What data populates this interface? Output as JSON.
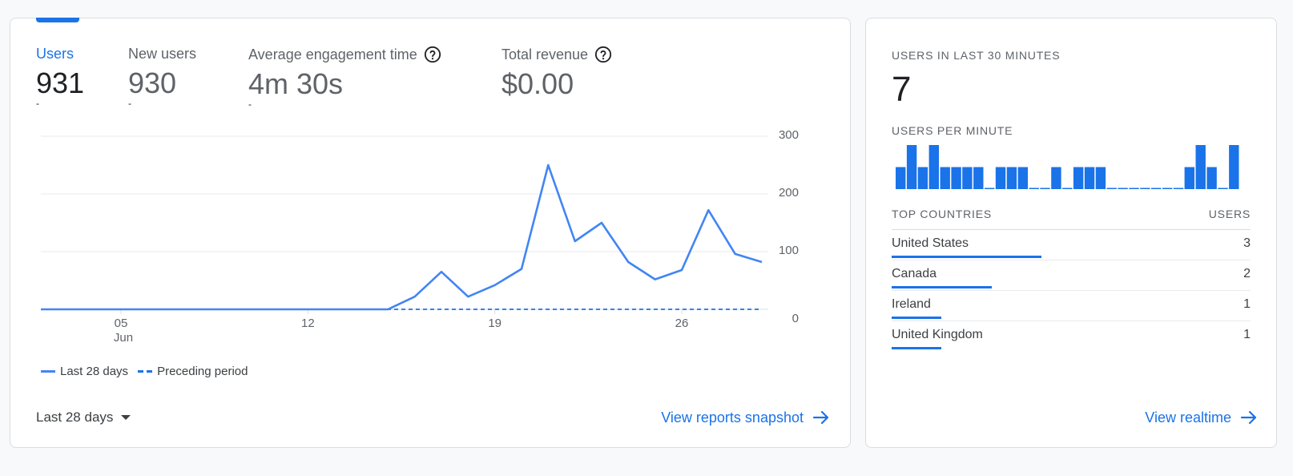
{
  "main_card": {
    "metrics": [
      {
        "label": "Users",
        "value": "931",
        "change": "-",
        "active": true,
        "help": false
      },
      {
        "label": "New users",
        "value": "930",
        "change": "-",
        "active": false,
        "help": false
      },
      {
        "label": "Average engagement time",
        "value": "4m 30s",
        "change": "-",
        "active": false,
        "help": true
      },
      {
        "label": "Total revenue",
        "value": "$0.00",
        "change": "",
        "active": false,
        "help": true
      }
    ],
    "date_range_label": "Last 28 days",
    "snapshot_link": "View reports snapshot"
  },
  "chart_data": {
    "type": "line",
    "y_ticks": [
      "300",
      "200",
      "100",
      "0"
    ],
    "ylim": [
      0,
      300
    ],
    "x_ticks": [
      {
        "label": "05",
        "sublabel": "Jun",
        "day": 5
      },
      {
        "label": "12",
        "sublabel": "",
        "day": 12
      },
      {
        "label": "19",
        "sublabel": "",
        "day": 19
      },
      {
        "label": "26",
        "sublabel": "",
        "day": 26
      }
    ],
    "x_days": [
      2,
      3,
      4,
      5,
      6,
      7,
      8,
      9,
      10,
      11,
      12,
      13,
      14,
      15,
      16,
      17,
      18,
      19,
      20,
      21,
      22,
      23,
      24,
      25,
      26,
      27,
      28,
      29
    ],
    "series": [
      {
        "name": "Last 28 days",
        "style": "solid",
        "color": "#4285f4",
        "values": [
          0,
          0,
          0,
          0,
          0,
          0,
          0,
          0,
          0,
          0,
          0,
          0,
          0,
          0,
          22,
          65,
          22,
          42,
          70,
          250,
          118,
          150,
          82,
          52,
          68,
          172,
          96,
          82
        ]
      },
      {
        "name": "Preceding period",
        "style": "dashed",
        "color": "#1a73e8",
        "values": [
          0,
          0,
          0,
          0,
          0,
          0,
          0,
          0,
          0,
          0,
          0,
          0,
          0,
          0,
          0,
          0,
          0,
          0,
          0,
          0,
          0,
          0,
          0,
          0,
          0,
          0,
          0,
          0
        ]
      }
    ],
    "grid": true,
    "legend_placement": "bottom-left"
  },
  "realtime": {
    "users_label": "USERS IN LAST 30 MINUTES",
    "users_value": "7",
    "per_minute_label": "USERS PER MINUTE",
    "per_minute_values": [
      1,
      2,
      1,
      2,
      1,
      1,
      1,
      1,
      0,
      1,
      1,
      1,
      0,
      0,
      1,
      0,
      1,
      1,
      1,
      0,
      0,
      0,
      0,
      0,
      0,
      0,
      1,
      2,
      1,
      0,
      2
    ],
    "per_minute_max": 2,
    "bar_color": "#1a73e8",
    "countries_header": "TOP COUNTRIES",
    "users_header": "USERS",
    "countries": [
      {
        "name": "United States",
        "value": "3",
        "share": 1.0
      },
      {
        "name": "Canada",
        "value": "2",
        "share": 0.667
      },
      {
        "name": "Ireland",
        "value": "1",
        "share": 0.333
      },
      {
        "name": "United Kingdom",
        "value": "1",
        "share": 0.333
      }
    ],
    "realtime_link": "View realtime"
  }
}
